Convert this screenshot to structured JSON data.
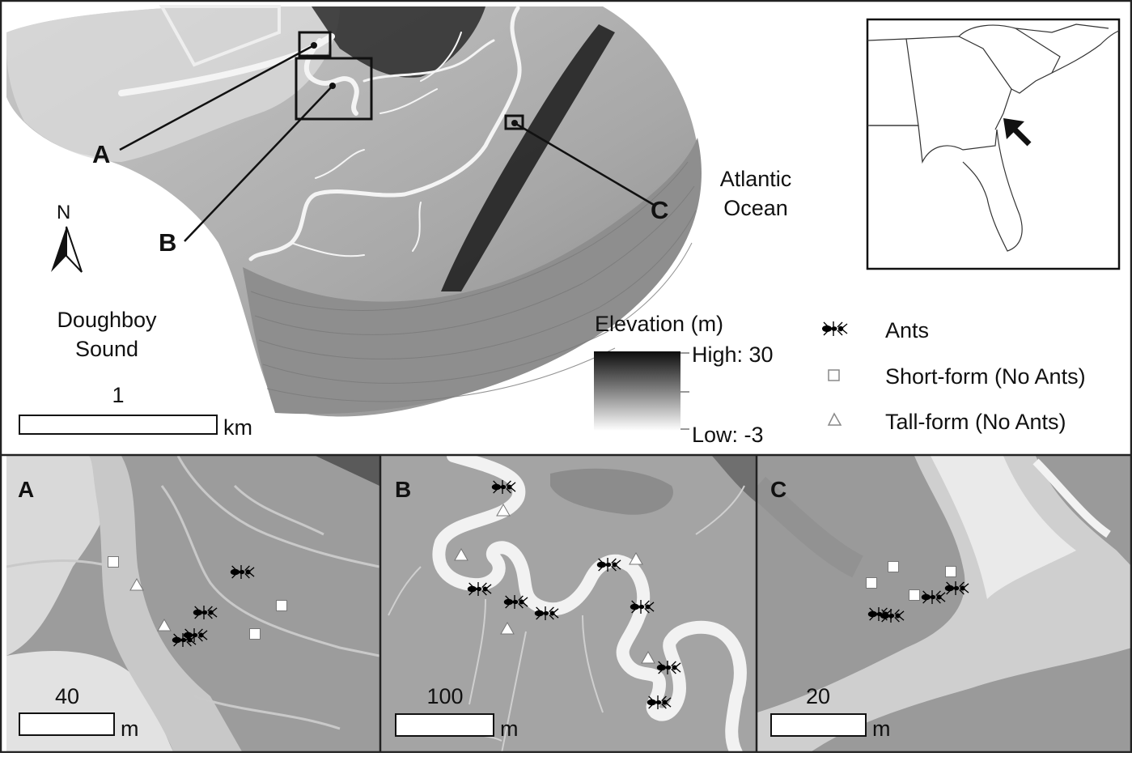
{
  "main_map": {
    "callouts": [
      "A",
      "B",
      "C"
    ],
    "north_label": "N",
    "water_left": [
      "Doughboy",
      "Sound"
    ],
    "water_right": [
      "Atlantic",
      "Ocean"
    ],
    "scale": {
      "value": "1",
      "unit": "km"
    }
  },
  "elevation_legend": {
    "title": "Elevation (m)",
    "high_label": "High: 30",
    "low_label": "Low: -3",
    "ramp_colors": [
      "#0d0d0d",
      "#ffffff"
    ]
  },
  "symbol_legend": {
    "items": [
      {
        "label": "Ants",
        "symbol": "ant-icon"
      },
      {
        "label": "Short-form (No Ants)",
        "symbol": "square-icon"
      },
      {
        "label": "Tall-form (No Ants)",
        "symbol": "triangle-icon"
      }
    ]
  },
  "inset_map": {
    "marker": "arrow-icon"
  },
  "panels": [
    {
      "letter": "A",
      "scale": {
        "value": "40",
        "unit": "m"
      },
      "ants": [
        [
          298,
          706
        ],
        [
          252,
          756
        ],
        [
          240,
          784
        ],
        [
          226,
          790
        ]
      ],
      "squares": [
        [
          140,
          694
        ],
        [
          348,
          748
        ],
        [
          315,
          783
        ]
      ],
      "triangles": [
        [
          169,
          723
        ],
        [
          203,
          773
        ]
      ]
    },
    {
      "letter": "B",
      "scale": {
        "value": "100",
        "unit": "m"
      },
      "ants": [
        [
          621,
          601
        ],
        [
          591,
          727
        ],
        [
          636,
          743
        ],
        [
          674,
          757
        ],
        [
          751,
          697
        ],
        [
          792,
          749
        ],
        [
          825,
          824
        ],
        [
          813,
          867
        ]
      ],
      "squares": [],
      "triangles": [
        [
          622,
          631
        ],
        [
          570,
          686
        ],
        [
          627,
          777
        ],
        [
          786,
          691
        ],
        [
          801,
          813
        ]
      ]
    },
    {
      "letter": "C",
      "scale": {
        "value": "20",
        "unit": "m"
      },
      "ants": [
        [
          1086,
          758
        ],
        [
          1101,
          760
        ],
        [
          1152,
          737
        ],
        [
          1181,
          726
        ]
      ],
      "squares": [
        [
          1077,
          720
        ],
        [
          1104,
          700
        ],
        [
          1130,
          735
        ],
        [
          1175,
          706
        ]
      ],
      "triangles": []
    }
  ]
}
